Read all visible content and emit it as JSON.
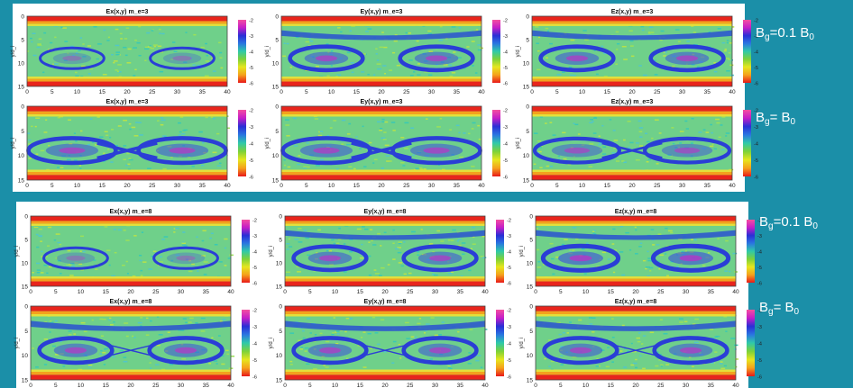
{
  "colors": {
    "background": "#1b8fa8",
    "panel_bg": "#ffffff",
    "label_text": "#ffffff"
  },
  "colorbar_gradient": [
    "#e8191a",
    "#f5a11c",
    "#e6e61e",
    "#7dd13a",
    "#2fc9a9",
    "#2a76e0",
    "#2a2fd6",
    "#c41ec8",
    "#f54fa0"
  ],
  "labels": {
    "top_weak": {
      "main": "B",
      "sub": "g",
      "rest": "=0.1 B",
      "sub2": "0"
    },
    "top_strong": {
      "main": "B",
      "sub": "g",
      "rest": "= B",
      "sub2": "0"
    },
    "bottom_weak": {
      "main": "B",
      "sub": "g",
      "rest": "=0.1 B",
      "sub2": "0"
    },
    "bottom_strong": {
      "main": "B",
      "sub": "g",
      "rest": "= B",
      "sub2": "0"
    }
  },
  "chart_data": [
    {
      "type": "heatmap",
      "group": "m_e=3",
      "title": "Ex(x,y) m_e=3",
      "xlim": [
        0,
        40
      ],
      "ylim": [
        15,
        0
      ],
      "xticks": [
        0,
        5,
        10,
        15,
        20,
        25,
        30,
        35,
        40
      ],
      "yticks": [
        0,
        5,
        10,
        15
      ],
      "ylabel": "y/d_i",
      "colorbar_ticks": [
        -2,
        -3,
        -4,
        -5,
        -6
      ],
      "field_component": "Ex",
      "row": 1,
      "col": 1,
      "island_strength": 0.5,
      "xpoint_bridge": 0.0,
      "top_band": false
    },
    {
      "type": "heatmap",
      "group": "m_e=3",
      "title": "Ey(x,y) m_e=3",
      "xlim": [
        0,
        40
      ],
      "ylim": [
        15,
        0
      ],
      "xticks": [
        0,
        5,
        10,
        15,
        20,
        25,
        30,
        35,
        40
      ],
      "yticks": [
        0,
        5,
        10,
        15
      ],
      "ylabel": "y/d_i",
      "colorbar_ticks": [
        -2,
        -3,
        -4,
        -5,
        -6
      ],
      "field_component": "Ey",
      "row": 1,
      "col": 2,
      "island_strength": 0.9,
      "xpoint_bridge": 0.0,
      "top_band": true
    },
    {
      "type": "heatmap",
      "group": "m_e=3",
      "title": "Ez(x,y) m_e=3",
      "xlim": [
        0,
        40
      ],
      "ylim": [
        15,
        0
      ],
      "xticks": [
        0,
        5,
        10,
        15,
        20,
        25,
        30,
        35,
        40
      ],
      "yticks": [
        0,
        5,
        10,
        15
      ],
      "ylabel": "y/d_i",
      "colorbar_ticks": [
        -2,
        -3,
        -4,
        -5,
        -6
      ],
      "field_component": "Ez",
      "row": 1,
      "col": 3,
      "island_strength": 0.9,
      "xpoint_bridge": 0.0,
      "top_band": true
    },
    {
      "type": "heatmap",
      "group": "m_e=3",
      "title": "Ex(x,y) m_e=3",
      "xlim": [
        0,
        40
      ],
      "ylim": [
        15,
        0
      ],
      "xticks": [
        0,
        5,
        10,
        15,
        20,
        25,
        30,
        35,
        40
      ],
      "yticks": [
        0,
        5,
        10,
        15
      ],
      "ylabel": "y/d_i",
      "colorbar_ticks": [
        -2,
        -3,
        -4,
        -5,
        -6
      ],
      "field_component": "Ex",
      "row": 2,
      "col": 1,
      "island_strength": 0.9,
      "xpoint_bridge": 1.0,
      "top_band": false
    },
    {
      "type": "heatmap",
      "group": "m_e=3",
      "title": "Ey(x,y) m_e=3",
      "xlim": [
        0,
        40
      ],
      "ylim": [
        15,
        0
      ],
      "xticks": [
        0,
        5,
        10,
        15,
        20,
        25,
        30,
        35,
        40
      ],
      "yticks": [
        0,
        5,
        10,
        15
      ],
      "ylabel": "y/d_i",
      "colorbar_ticks": [
        -2,
        -3,
        -4,
        -5,
        -6
      ],
      "field_component": "Ey",
      "row": 2,
      "col": 2,
      "island_strength": 0.9,
      "xpoint_bridge": 1.0,
      "top_band": false
    },
    {
      "type": "heatmap",
      "group": "m_e=3",
      "title": "Ez(x,y) m_e=3",
      "xlim": [
        0,
        40
      ],
      "ylim": [
        15,
        0
      ],
      "xticks": [
        0,
        5,
        10,
        15,
        20,
        25,
        30,
        35,
        40
      ],
      "yticks": [
        0,
        5,
        10,
        15
      ],
      "ylabel": "y/d_i",
      "colorbar_ticks": [
        -2,
        -3,
        -4,
        -5,
        -6
      ],
      "field_component": "Ez",
      "row": 2,
      "col": 3,
      "island_strength": 0.8,
      "xpoint_bridge": 0.7,
      "top_band": false
    },
    {
      "type": "heatmap",
      "group": "m_e=8",
      "title": "Ex(x,y) m_e=8",
      "xlim": [
        0,
        40
      ],
      "ylim": [
        15,
        0
      ],
      "xticks": [
        0,
        5,
        10,
        15,
        20,
        25,
        30,
        35,
        40
      ],
      "yticks": [
        0,
        5,
        10,
        15
      ],
      "ylabel": "y/d_i",
      "colorbar_ticks": [
        -2,
        -3,
        -4,
        -5,
        -6
      ],
      "field_component": "Ex",
      "row": 3,
      "col": 1,
      "island_strength": 0.5,
      "xpoint_bridge": 0.0,
      "top_band": false
    },
    {
      "type": "heatmap",
      "group": "m_e=8",
      "title": "Ey(x,y) m_e=8",
      "xlim": [
        0,
        40
      ],
      "ylim": [
        15,
        0
      ],
      "xticks": [
        0,
        5,
        10,
        15,
        20,
        25,
        30,
        35,
        40
      ],
      "yticks": [
        0,
        5,
        10,
        15
      ],
      "ylabel": "y/d_i",
      "colorbar_ticks": [
        -2,
        -3,
        -4,
        -5,
        -6
      ],
      "field_component": "Ey",
      "row": 3,
      "col": 2,
      "island_strength": 0.9,
      "xpoint_bridge": 0.0,
      "top_band": true
    },
    {
      "type": "heatmap",
      "group": "m_e=8",
      "title": "Ez(x,y) m_e=8",
      "xlim": [
        0,
        40
      ],
      "ylim": [
        15,
        0
      ],
      "xticks": [
        0,
        5,
        10,
        15,
        20,
        25,
        30,
        35,
        40
      ],
      "yticks": [
        0,
        5,
        10,
        15
      ],
      "ylabel": "y/d_i",
      "colorbar_ticks": [
        -2,
        -3,
        -4,
        -5,
        -6
      ],
      "field_component": "Ez",
      "row": 3,
      "col": 3,
      "island_strength": 1.0,
      "xpoint_bridge": 0.0,
      "top_band": true
    },
    {
      "type": "heatmap",
      "group": "m_e=8",
      "title": "Ex(x,y) m_e=8",
      "xlim": [
        0,
        40
      ],
      "ylim": [
        15,
        0
      ],
      "xticks": [
        0,
        5,
        10,
        15,
        20,
        25,
        30,
        35,
        40
      ],
      "yticks": [
        0,
        5,
        10,
        15
      ],
      "ylabel": "y/d_i",
      "colorbar_ticks": [
        -2,
        -3,
        -4,
        -5,
        -6
      ],
      "field_component": "Ex",
      "row": 4,
      "col": 1,
      "island_strength": 0.9,
      "xpoint_bridge": 0.3,
      "top_band": true
    },
    {
      "type": "heatmap",
      "group": "m_e=8",
      "title": "Ey(x,y) m_e=8",
      "xlim": [
        0,
        40
      ],
      "ylim": [
        15,
        0
      ],
      "xticks": [
        0,
        5,
        10,
        15,
        20,
        25,
        30,
        35,
        40
      ],
      "yticks": [
        0,
        5,
        10,
        15
      ],
      "ylabel": "y/d_i",
      "colorbar_ticks": [
        -2,
        -3,
        -4,
        -5,
        -6
      ],
      "field_component": "Ey",
      "row": 4,
      "col": 2,
      "island_strength": 0.9,
      "xpoint_bridge": 0.3,
      "top_band": true
    },
    {
      "type": "heatmap",
      "group": "m_e=8",
      "title": "Ez(x,y) m_e=8",
      "xlim": [
        0,
        40
      ],
      "ylim": [
        15,
        0
      ],
      "xticks": [
        0,
        5,
        10,
        15,
        20,
        25,
        30,
        35,
        40
      ],
      "yticks": [
        0,
        5,
        10,
        15
      ],
      "ylabel": "y/d_i",
      "colorbar_ticks": [
        -2,
        -3,
        -4,
        -5,
        -6
      ],
      "field_component": "Ez",
      "row": 4,
      "col": 3,
      "island_strength": 0.9,
      "xpoint_bridge": 0.3,
      "top_band": true
    }
  ]
}
